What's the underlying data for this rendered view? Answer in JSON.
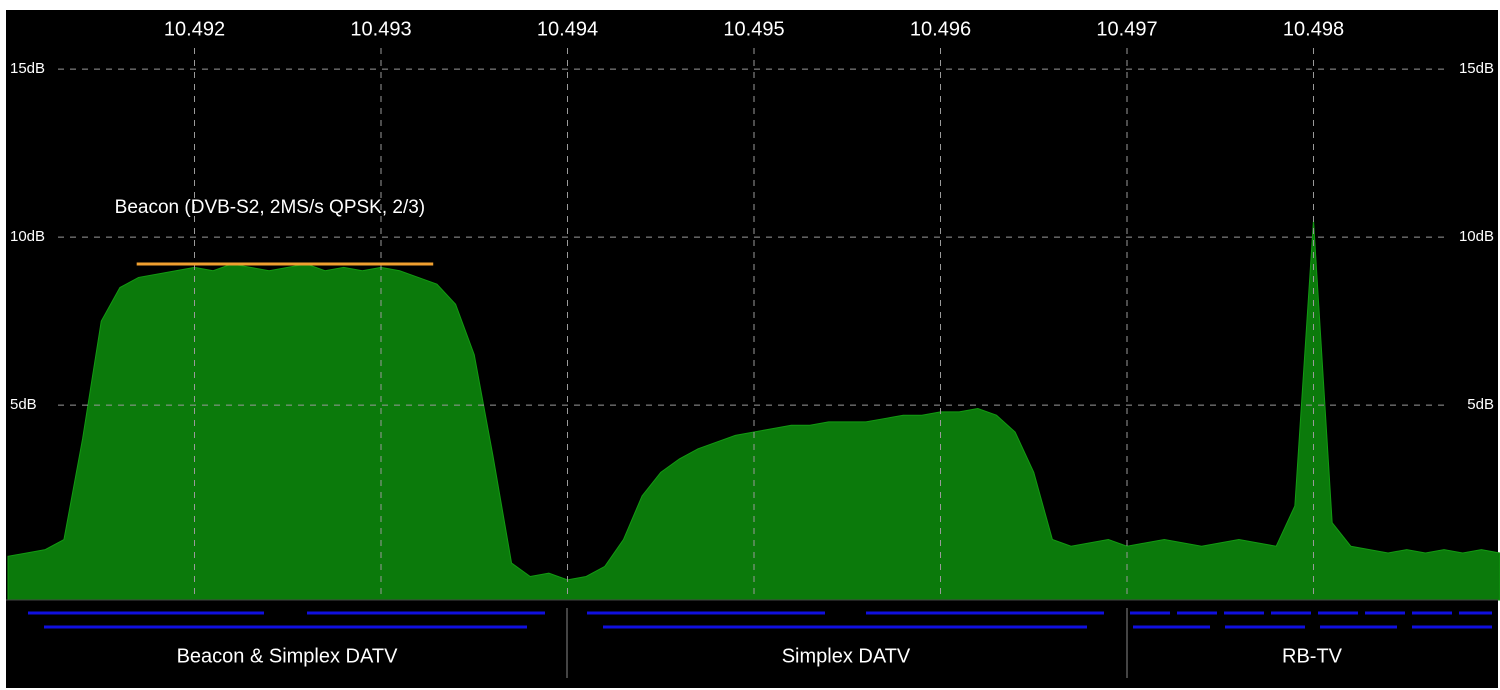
{
  "chart_data": {
    "type": "area",
    "x": [
      10.491,
      10.4911,
      10.4912,
      10.4913,
      10.4914,
      10.4915,
      10.4916,
      10.4917,
      10.4918,
      10.4919,
      10.492,
      10.4921,
      10.4922,
      10.4923,
      10.4924,
      10.4925,
      10.4926,
      10.4927,
      10.4928,
      10.4929,
      10.493,
      10.4931,
      10.4932,
      10.4933,
      10.4934,
      10.4935,
      10.4936,
      10.4937,
      10.4938,
      10.4939,
      10.494,
      10.4941,
      10.4942,
      10.4943,
      10.4944,
      10.4945,
      10.4946,
      10.4947,
      10.4948,
      10.4949,
      10.495,
      10.4951,
      10.4952,
      10.4953,
      10.4954,
      10.4955,
      10.4956,
      10.4957,
      10.4958,
      10.4959,
      10.496,
      10.4961,
      10.4962,
      10.4963,
      10.4964,
      10.4965,
      10.4966,
      10.4967,
      10.4968,
      10.4969,
      10.497,
      10.4971,
      10.4972,
      10.4973,
      10.4974,
      10.4975,
      10.4976,
      10.4977,
      10.4978,
      10.4979,
      10.498,
      10.4981,
      10.4982,
      10.4983,
      10.4984,
      10.4985,
      10.4986,
      10.4987,
      10.4988,
      10.4989,
      10.499
    ],
    "values": [
      0.5,
      0.6,
      0.7,
      1.0,
      4.0,
      7.5,
      8.5,
      8.8,
      8.9,
      9.0,
      9.1,
      9.0,
      9.2,
      9.1,
      9.0,
      9.1,
      9.2,
      9.0,
      9.1,
      9.0,
      9.1,
      9.0,
      8.8,
      8.6,
      8.0,
      6.5,
      3.5,
      0.3,
      -0.1,
      0.0,
      -0.2,
      -0.1,
      0.2,
      1.0,
      2.3,
      3.0,
      3.4,
      3.7,
      3.9,
      4.1,
      4.2,
      4.3,
      4.4,
      4.4,
      4.5,
      4.5,
      4.5,
      4.6,
      4.7,
      4.7,
      4.8,
      4.8,
      4.9,
      4.7,
      4.2,
      3.0,
      1.0,
      0.8,
      0.9,
      1.0,
      0.8,
      0.9,
      1.0,
      0.9,
      0.8,
      0.9,
      1.0,
      0.9,
      0.8,
      2.0,
      10.5,
      1.5,
      0.8,
      0.7,
      0.6,
      0.7,
      0.6,
      0.7,
      0.6,
      0.7,
      0.6
    ],
    "color": "#0b7a0b",
    "xlim": [
      10.491,
      10.499
    ],
    "xticks": [
      10.492,
      10.493,
      10.494,
      10.495,
      10.496,
      10.497,
      10.498
    ],
    "ylim": [
      -0.8,
      16.7
    ],
    "yticks": [
      {
        "value": 5,
        "label": "5dB"
      },
      {
        "value": 10,
        "label": "10dB"
      },
      {
        "value": 15,
        "label": "15dB"
      }
    ],
    "grid": true,
    "annotation": {
      "text": "Beacon (DVB-S2, 2MS/s QPSK, 2/3)",
      "x": [
        10.49169,
        10.49328
      ],
      "y": 9.2,
      "color": "#f0a030"
    }
  },
  "bands": [
    "Beacon & Simplex DATV",
    "Simplex DATV",
    "RB-TV"
  ]
}
